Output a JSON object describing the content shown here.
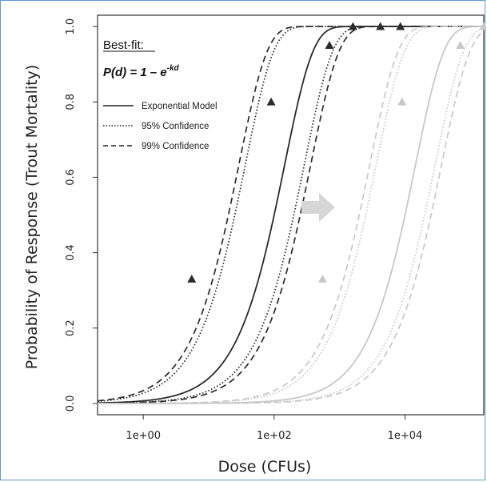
{
  "chart_data": {
    "type": "line",
    "xlabel": "Dose (CFUs)",
    "ylabel": "Probability of Response (Trout Mortality)",
    "x_scale": "log10",
    "xlim": [
      0.2,
      160000
    ],
    "ylim": [
      -0.03,
      1.03
    ],
    "x_ticks": [
      1,
      100,
      10000
    ],
    "x_tick_labels": [
      "1e+00",
      "1e+02",
      "1e+04"
    ],
    "y_ticks": [
      0.0,
      0.2,
      0.4,
      0.6,
      0.8,
      1.0
    ],
    "y_tick_labels": [
      "0.0",
      "0.2",
      "0.4",
      "0.6",
      "0.8",
      "1.0"
    ],
    "grid": false,
    "legend_position": "top-left",
    "annotation": {
      "heading": "Best-fit:",
      "formula_main": "P(d) = 1 – e",
      "formula_exp": "-kd"
    },
    "legend": [
      {
        "label": "Exponential Model",
        "style": "solid"
      },
      {
        "label": "95% Confidence",
        "style": "dotted"
      },
      {
        "label": "99% Confidence",
        "style": "dashed"
      }
    ],
    "series": [
      {
        "group": "original",
        "style": "solid",
        "color": "#2b2b2b",
        "k": 0.00693
      },
      {
        "group": "original",
        "style": "dotted",
        "color": "#2b2b2b",
        "k": 0.0277
      },
      {
        "group": "original",
        "style": "dotted",
        "color": "#2b2b2b",
        "k": 0.00347
      },
      {
        "group": "original",
        "style": "dashed",
        "color": "#2b2b2b",
        "k": 0.0347
      },
      {
        "group": "original",
        "style": "dashed",
        "color": "#2b2b2b",
        "k": 0.00277
      },
      {
        "group": "shifted",
        "style": "solid",
        "color": "#c8c8c8",
        "k": 6.93e-05
      },
      {
        "group": "shifted",
        "style": "dotted",
        "color": "#c8c8c8",
        "k": 0.000277
      },
      {
        "group": "shifted",
        "style": "dotted",
        "color": "#c8c8c8",
        "k": 3.47e-05
      },
      {
        "group": "shifted",
        "style": "dashed",
        "color": "#c8c8c8",
        "k": 0.000347
      },
      {
        "group": "shifted",
        "style": "dashed",
        "color": "#c8c8c8",
        "k": 2.77e-05
      }
    ],
    "observed_points": [
      {
        "x": 5.5,
        "y": 0.33
      },
      {
        "x": 90,
        "y": 0.8
      },
      {
        "x": 700,
        "y": 0.95
      },
      {
        "x": 1600,
        "y": 1.0
      },
      {
        "x": 4200,
        "y": 1.0
      },
      {
        "x": 8500,
        "y": 1.0
      }
    ],
    "shifted_points": [
      {
        "x": 550,
        "y": 0.33
      },
      {
        "x": 9000,
        "y": 0.8
      },
      {
        "x": 70000,
        "y": 0.95
      },
      {
        "x": 160000,
        "y": 1.0
      }
    ],
    "colors": {
      "original": "#2b2b2b",
      "shifted": "#c8c8c8",
      "arrow": "#d6d6d6"
    }
  }
}
